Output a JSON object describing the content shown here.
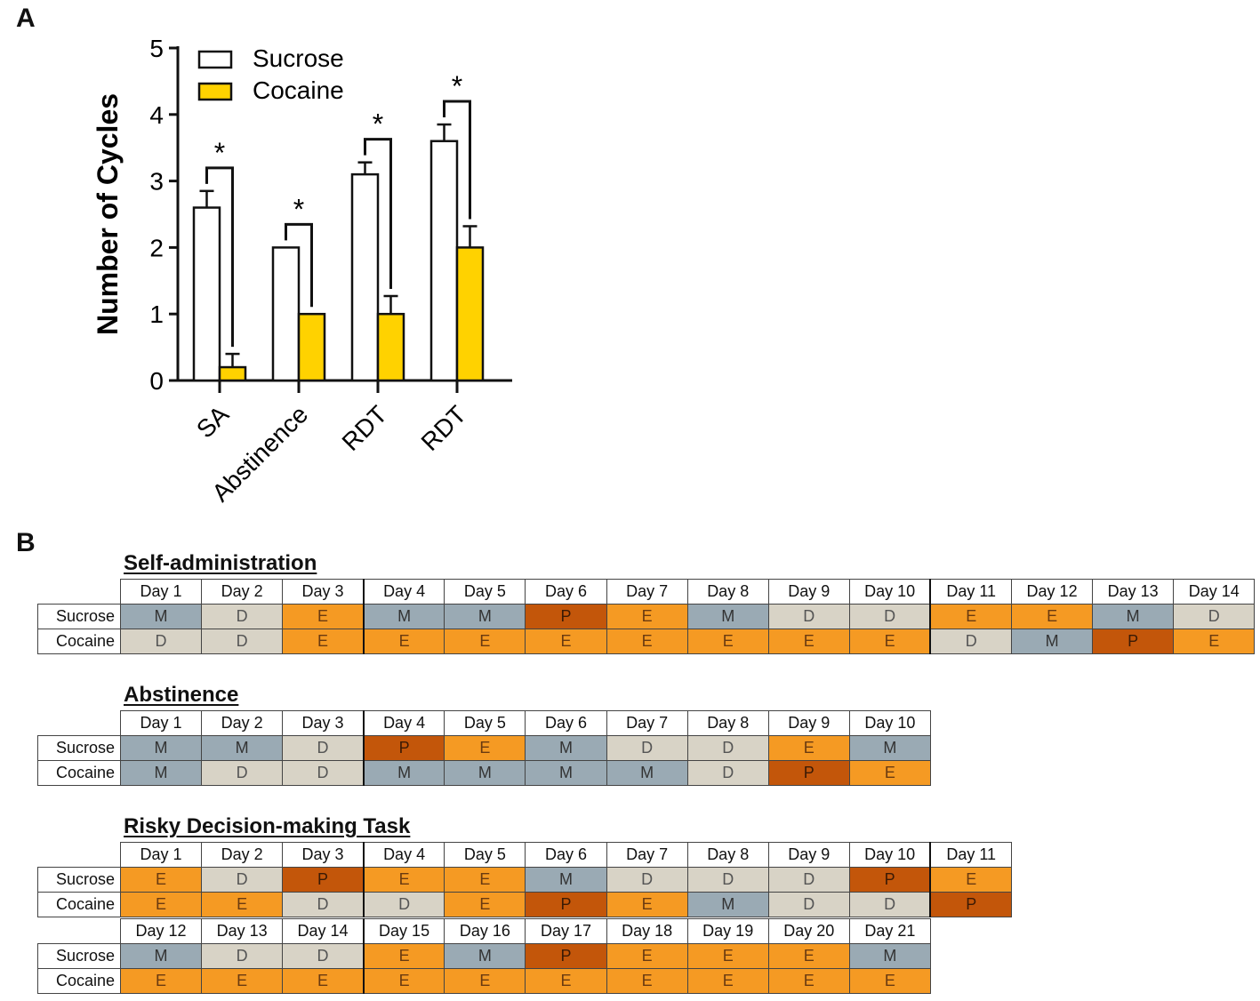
{
  "panel_a_label": "A",
  "panel_b_label": "B",
  "colors": {
    "sucrose_fill": "#ffffff",
    "cocaine_fill": "#ffd200",
    "M": "#9aaab4",
    "D": "#d8d3c6",
    "E": "#f59a23",
    "P": "#c3560a"
  },
  "chart_data": {
    "type": "bar",
    "title": "",
    "xlabel": "",
    "ylabel": "Number of Cycles",
    "ylim": [
      0,
      5
    ],
    "yticks": [
      "0",
      "1",
      "2",
      "3",
      "4",
      "5"
    ],
    "categories": [
      "SA",
      "Abstinence",
      "RDT",
      "RDT"
    ],
    "series": [
      {
        "name": "Sucrose",
        "values": [
          2.6,
          2.0,
          3.1,
          3.6
        ],
        "errors": [
          0.25,
          0,
          0.18,
          0.25
        ]
      },
      {
        "name": "Cocaine",
        "values": [
          0.2,
          1.0,
          1.0,
          2.0
        ],
        "errors": [
          0.2,
          0,
          0.27,
          0.32
        ]
      }
    ],
    "significance": [
      "*",
      "*",
      "*",
      "*"
    ],
    "legend_position": "top-left"
  },
  "panel_b": {
    "row_labels": [
      "Sucrose",
      "Cocaine"
    ],
    "sections": [
      {
        "title": "Self-administration",
        "blocks": [
          {
            "days": [
              "Day 1",
              "Day 2",
              "Day 3",
              "Day 4",
              "Day 5",
              "Day 6",
              "Day 7",
              "Day 8",
              "Day 9",
              "Day 10",
              "Day 11",
              "Day 12",
              "Day 13",
              "Day 14"
            ],
            "sucrose": [
              "M",
              "D",
              "E",
              "M",
              "M",
              "P",
              "E",
              "M",
              "D",
              "D",
              "E",
              "E",
              "M",
              "D"
            ],
            "cocaine": [
              "D",
              "D",
              "E",
              "E",
              "E",
              "E",
              "E",
              "E",
              "E",
              "E",
              "D",
              "M",
              "P",
              "E"
            ]
          }
        ]
      },
      {
        "title": "Abstinence",
        "blocks": [
          {
            "days": [
              "Day 1",
              "Day 2",
              "Day 3",
              "Day 4",
              "Day 5",
              "Day 6",
              "Day 7",
              "Day 8",
              "Day 9",
              "Day 10"
            ],
            "sucrose": [
              "M",
              "M",
              "D",
              "P",
              "E",
              "M",
              "D",
              "D",
              "E",
              "M"
            ],
            "cocaine": [
              "M",
              "D",
              "D",
              "M",
              "M",
              "M",
              "M",
              "D",
              "P",
              "E"
            ]
          }
        ]
      },
      {
        "title": "Risky Decision-making Task",
        "blocks": [
          {
            "days": [
              "Day 1",
              "Day 2",
              "Day 3",
              "Day 4",
              "Day 5",
              "Day 6",
              "Day 7",
              "Day 8",
              "Day 9",
              "Day 10",
              "Day 11"
            ],
            "sucrose": [
              "E",
              "D",
              "P",
              "E",
              "E",
              "M",
              "D",
              "D",
              "D",
              "P",
              "E"
            ],
            "cocaine": [
              "E",
              "E",
              "D",
              "D",
              "E",
              "P",
              "E",
              "M",
              "D",
              "D",
              "P"
            ]
          },
          {
            "days": [
              "Day 12",
              "Day 13",
              "Day 14",
              "Day 15",
              "Day 16",
              "Day 17",
              "Day 18",
              "Day 19",
              "Day 20",
              "Day 21"
            ],
            "sucrose": [
              "M",
              "D",
              "D",
              "E",
              "M",
              "P",
              "E",
              "E",
              "E",
              "M"
            ],
            "cocaine": [
              "E",
              "E",
              "E",
              "E",
              "E",
              "E",
              "E",
              "E",
              "E",
              "E"
            ]
          }
        ]
      }
    ]
  }
}
